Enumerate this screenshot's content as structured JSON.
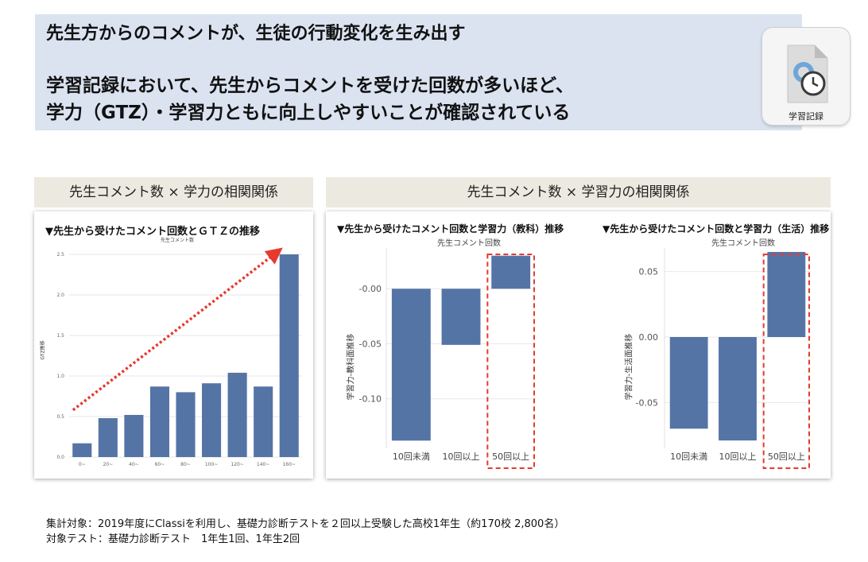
{
  "header": {
    "line1": "先生方からのコメントが、生徒の行動変化を生み出す",
    "line2": "学習記録において、先生からコメントを受けた回数が多いほど、",
    "line3": "学力（GTZ）・学習力ともに向上しやすいことが確認されている"
  },
  "app_icon": {
    "label": "学習記録",
    "icon": "clock-document-icon"
  },
  "sections": {
    "left_label": "先生コメント数 × 学力の相関関係",
    "right_label": "先生コメント数 × 学習力の相関関係"
  },
  "footer": {
    "line1": "集計対象：2019年度にClassiを利用し、基礎力診断テストを２回以上受験した高校1年生（約170校 2,800名）",
    "line2": "対象テスト：基礎力診断テスト　1年生1回、1年生2回"
  },
  "colors": {
    "bar": "#5574a6",
    "highlight": "#e63a2e",
    "trend_arrow": "#e63a2e"
  },
  "chart_data": [
    {
      "type": "bar",
      "title": "▼先生から受けたコメント回数とＧＴＺの推移",
      "xlabel": "先生コメント数",
      "ylabel": "GTZ推移",
      "categories": [
        "0~",
        "20~",
        "40~",
        "60~",
        "80~",
        "100~",
        "120~",
        "140~",
        "160~"
      ],
      "values": [
        0.17,
        0.48,
        0.52,
        0.87,
        0.8,
        0.91,
        1.04,
        0.87,
        2.5
      ],
      "ylim": [
        0,
        2.5
      ],
      "yticks": [
        "0.0",
        "0.5",
        "1.0",
        "1.5",
        "2.0",
        "2.5"
      ],
      "annotation": "rising trend arrow",
      "grid": true
    },
    {
      "type": "bar",
      "title": "▼先生から受けたコメント回数と学習力（教科）推移",
      "xlabel": "先生コメント回数",
      "ylabel": "学習力-教科面推移",
      "categories": [
        "10回未満",
        "10回以上",
        "50回以上"
      ],
      "values": [
        -0.138,
        -0.051,
        0.03
      ],
      "ylim": [
        -0.145,
        0.037
      ],
      "yticks": [
        "-0.00",
        "-0.05",
        "-0.10"
      ],
      "highlight": "50回以上",
      "grid": true
    },
    {
      "type": "bar",
      "title": "▼先生から受けたコメント回数と学習力（生活）推移",
      "xlabel": "先生コメント回数",
      "ylabel": "学習力-生活面推移",
      "categories": [
        "10回未満",
        "10回以上",
        "50回以上"
      ],
      "values": [
        -0.07,
        -0.079,
        0.065
      ],
      "ylim": [
        -0.085,
        0.068
      ],
      "yticks": [
        "0.05",
        "0.00",
        "-0.05"
      ],
      "highlight": "50回以上",
      "grid": true
    }
  ]
}
